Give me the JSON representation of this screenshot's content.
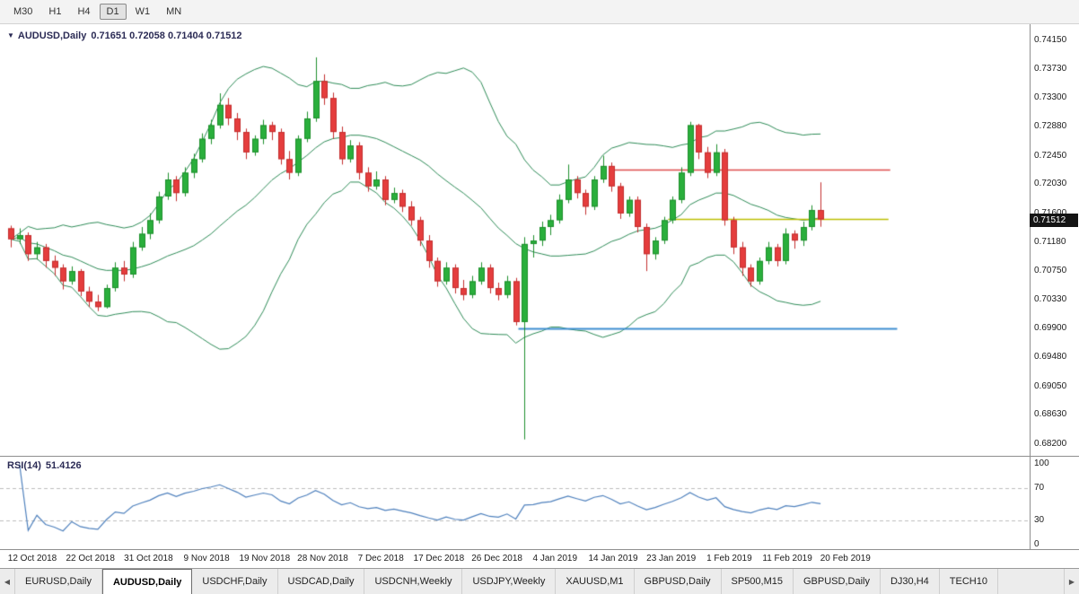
{
  "toolbar": {
    "timeframes": [
      {
        "label": "M30",
        "selected": false
      },
      {
        "label": "H1",
        "selected": false
      },
      {
        "label": "H4",
        "selected": false
      },
      {
        "label": "D1",
        "selected": true
      },
      {
        "label": "W1",
        "selected": false
      },
      {
        "label": "MN",
        "selected": false
      }
    ]
  },
  "chart": {
    "symbol_title": "AUDUSD,Daily",
    "ohlc_text": "0.71651 0.72058 0.71404 0.71512",
    "current_price": "0.71512",
    "marker_icon": "▼",
    "price_labels": [
      "0.74150",
      "0.73730",
      "0.73300",
      "0.72880",
      "0.72450",
      "0.72030",
      "0.71600",
      "0.71180",
      "0.70750",
      "0.70330",
      "0.69900",
      "0.69480",
      "0.69050",
      "0.68630",
      "0.68200"
    ],
    "colors": {
      "bull": "#2aaf3c",
      "bull_border": "#1e8f2c",
      "bear": "#e53d3d",
      "bear_border": "#c32f2f",
      "bollinger": "#2E8B57",
      "rsi_line": "#4f81bd",
      "badge_bg": "#141414",
      "badge_text": "#ffffff"
    }
  },
  "rsi": {
    "label": "RSI(14)",
    "value": "51.4126",
    "levels": [
      100,
      70,
      30,
      0
    ],
    "dashed_levels": [
      70,
      30
    ]
  },
  "dates": [
    "12 Oct 2018",
    "22 Oct 2018",
    "31 Oct 2018",
    "9 Nov 2018",
    "19 Nov 2018",
    "28 Nov 2018",
    "7 Dec 2018",
    "17 Dec 2018",
    "26 Dec 2018",
    "4 Jan 2019",
    "14 Jan 2019",
    "23 Jan 2019",
    "1 Feb 2019",
    "11 Feb 2019",
    "20 Feb 2019"
  ],
  "tabs": {
    "left_arrow": "◀",
    "right_arrow": "▶",
    "items": [
      {
        "label": "EURUSD,Daily",
        "selected": false
      },
      {
        "label": "AUDUSD,Daily",
        "selected": true
      },
      {
        "label": "USDCHF,Daily",
        "selected": false
      },
      {
        "label": "USDCAD,Daily",
        "selected": false
      },
      {
        "label": "USDCNH,Weekly",
        "selected": false
      },
      {
        "label": "USDJPY,Weekly",
        "selected": false
      },
      {
        "label": "XAUUSD,M1",
        "selected": false
      },
      {
        "label": "GBPUSD,Daily",
        "selected": false
      },
      {
        "label": "SP500,M15",
        "selected": false
      },
      {
        "label": "GBPUSD,Daily",
        "selected": false
      },
      {
        "label": "DJ30,H4",
        "selected": false
      },
      {
        "label": "TECH10",
        "selected": false
      }
    ]
  },
  "chart_data": {
    "type": "candlestick",
    "title": "AUDUSD,Daily",
    "y_axis": {
      "top": 0.7415,
      "bottom": 0.682
    },
    "ohlc_header": [
      "open",
      "high",
      "low",
      "close"
    ],
    "ohlc": [
      [
        0.7138,
        0.7142,
        0.711,
        0.7122
      ],
      [
        0.7122,
        0.7138,
        0.7115,
        0.7128
      ],
      [
        0.7128,
        0.7132,
        0.709,
        0.71
      ],
      [
        0.71,
        0.7118,
        0.7092,
        0.711
      ],
      [
        0.711,
        0.7115,
        0.708,
        0.709
      ],
      [
        0.709,
        0.7098,
        0.7068,
        0.708
      ],
      [
        0.708,
        0.7085,
        0.7048,
        0.706
      ],
      [
        0.706,
        0.7082,
        0.7055,
        0.7075
      ],
      [
        0.7075,
        0.7078,
        0.7038,
        0.7045
      ],
      [
        0.7045,
        0.7052,
        0.7022,
        0.703
      ],
      [
        0.703,
        0.704,
        0.7016,
        0.7022
      ],
      [
        0.7022,
        0.7055,
        0.702,
        0.705
      ],
      [
        0.705,
        0.7088,
        0.7045,
        0.708
      ],
      [
        0.708,
        0.709,
        0.706,
        0.707
      ],
      [
        0.707,
        0.7118,
        0.7065,
        0.711
      ],
      [
        0.711,
        0.714,
        0.7105,
        0.713
      ],
      [
        0.713,
        0.716,
        0.7122,
        0.715
      ],
      [
        0.715,
        0.7192,
        0.7145,
        0.7185
      ],
      [
        0.7185,
        0.722,
        0.718,
        0.721
      ],
      [
        0.721,
        0.7215,
        0.7178,
        0.719
      ],
      [
        0.719,
        0.7228,
        0.7185,
        0.722
      ],
      [
        0.722,
        0.7248,
        0.7212,
        0.724
      ],
      [
        0.724,
        0.7278,
        0.7235,
        0.727
      ],
      [
        0.727,
        0.7298,
        0.7262,
        0.729
      ],
      [
        0.729,
        0.7337,
        0.7285,
        0.732
      ],
      [
        0.732,
        0.733,
        0.729,
        0.73
      ],
      [
        0.73,
        0.7308,
        0.7268,
        0.728
      ],
      [
        0.728,
        0.7285,
        0.724,
        0.725
      ],
      [
        0.725,
        0.7275,
        0.7245,
        0.727
      ],
      [
        0.727,
        0.7298,
        0.7262,
        0.729
      ],
      [
        0.729,
        0.7295,
        0.7268,
        0.728
      ],
      [
        0.728,
        0.7285,
        0.7232,
        0.724
      ],
      [
        0.724,
        0.7252,
        0.721,
        0.722
      ],
      [
        0.722,
        0.7275,
        0.7215,
        0.727
      ],
      [
        0.727,
        0.731,
        0.7265,
        0.73
      ],
      [
        0.73,
        0.739,
        0.7295,
        0.7355
      ],
      [
        0.7355,
        0.7365,
        0.732,
        0.733
      ],
      [
        0.733,
        0.7338,
        0.727,
        0.728
      ],
      [
        0.728,
        0.7288,
        0.7232,
        0.724
      ],
      [
        0.724,
        0.7268,
        0.7235,
        0.726
      ],
      [
        0.726,
        0.7265,
        0.721,
        0.722
      ],
      [
        0.722,
        0.7228,
        0.7192,
        0.72
      ],
      [
        0.72,
        0.7222,
        0.7195,
        0.721
      ],
      [
        0.721,
        0.7215,
        0.7172,
        0.718
      ],
      [
        0.718,
        0.7198,
        0.7175,
        0.719
      ],
      [
        0.719,
        0.7195,
        0.7162,
        0.717
      ],
      [
        0.717,
        0.7178,
        0.7142,
        0.715
      ],
      [
        0.715,
        0.7155,
        0.7112,
        0.712
      ],
      [
        0.712,
        0.7128,
        0.708,
        0.709
      ],
      [
        0.709,
        0.7095,
        0.7052,
        0.706
      ],
      [
        0.706,
        0.7088,
        0.7055,
        0.708
      ],
      [
        0.708,
        0.7085,
        0.7042,
        0.705
      ],
      [
        0.705,
        0.7062,
        0.7032,
        0.704
      ],
      [
        0.704,
        0.7068,
        0.7035,
        0.706
      ],
      [
        0.706,
        0.7088,
        0.7055,
        0.708
      ],
      [
        0.708,
        0.7085,
        0.7042,
        0.705
      ],
      [
        0.705,
        0.7058,
        0.7032,
        0.704
      ],
      [
        0.704,
        0.7068,
        0.7035,
        0.706
      ],
      [
        0.706,
        0.7065,
        0.6995,
        0.7
      ],
      [
        0.7,
        0.7125,
        0.6827,
        0.7115
      ],
      [
        0.7115,
        0.7128,
        0.7095,
        0.712
      ],
      [
        0.712,
        0.7148,
        0.7112,
        0.714
      ],
      [
        0.714,
        0.7158,
        0.7128,
        0.715
      ],
      [
        0.715,
        0.7188,
        0.7145,
        0.718
      ],
      [
        0.718,
        0.7232,
        0.7175,
        0.721
      ],
      [
        0.721,
        0.7215,
        0.7182,
        0.719
      ],
      [
        0.719,
        0.7195,
        0.7158,
        0.717
      ],
      [
        0.717,
        0.7215,
        0.7165,
        0.721
      ],
      [
        0.721,
        0.7245,
        0.7205,
        0.723
      ],
      [
        0.723,
        0.7235,
        0.7192,
        0.72
      ],
      [
        0.72,
        0.7205,
        0.7152,
        0.716
      ],
      [
        0.716,
        0.7185,
        0.7155,
        0.718
      ],
      [
        0.718,
        0.7185,
        0.7132,
        0.714
      ],
      [
        0.714,
        0.7145,
        0.7075,
        0.71
      ],
      [
        0.71,
        0.7125,
        0.7092,
        0.712
      ],
      [
        0.712,
        0.7155,
        0.7115,
        0.715
      ],
      [
        0.715,
        0.7185,
        0.7145,
        0.718
      ],
      [
        0.718,
        0.7228,
        0.7175,
        0.722
      ],
      [
        0.722,
        0.7295,
        0.7215,
        0.729
      ],
      [
        0.729,
        0.7292,
        0.724,
        0.725
      ],
      [
        0.725,
        0.7258,
        0.7212,
        0.722
      ],
      [
        0.722,
        0.7262,
        0.7215,
        0.725
      ],
      [
        0.725,
        0.7255,
        0.7142,
        0.715
      ],
      [
        0.715,
        0.7155,
        0.71,
        0.711
      ],
      [
        0.711,
        0.7118,
        0.7068,
        0.708
      ],
      [
        0.708,
        0.7085,
        0.7052,
        0.706
      ],
      [
        0.706,
        0.7095,
        0.7055,
        0.709
      ],
      [
        0.709,
        0.7118,
        0.7085,
        0.711
      ],
      [
        0.711,
        0.7115,
        0.7082,
        0.709
      ],
      [
        0.709,
        0.7138,
        0.7085,
        0.713
      ],
      [
        0.713,
        0.7135,
        0.7108,
        0.712
      ],
      [
        0.712,
        0.7148,
        0.7112,
        0.714
      ],
      [
        0.714,
        0.7172,
        0.7135,
        0.7165
      ],
      [
        0.71651,
        0.72058,
        0.71404,
        0.71512
      ]
    ],
    "indicators": {
      "bollinger_period": 20,
      "bollinger_deviation": 2,
      "rsi_period": 14,
      "rsi_value": 51.4126
    },
    "hlines": [
      {
        "name": "resistance-line",
        "price": 0.7225,
        "color": "#dd4b4b",
        "width": 1.5,
        "i1": 68.8,
        "i2": 101
      },
      {
        "name": "current-level-line",
        "price": 0.7152,
        "color": "#bcbe00",
        "width": 1.7,
        "i1": 75.5,
        "i2": 100.8
      },
      {
        "name": "support-line",
        "price": 0.699,
        "color": "#3e8ed0",
        "width": 2.2,
        "i1": 58.3,
        "i2": 101.8
      }
    ]
  }
}
